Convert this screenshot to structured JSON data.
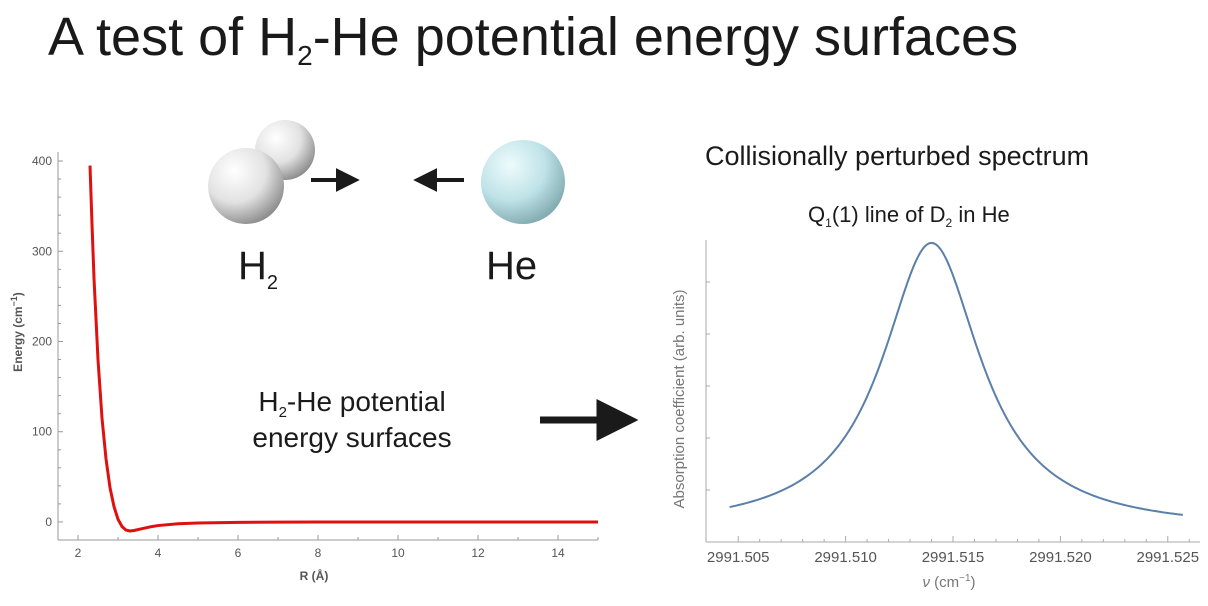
{
  "slide": {
    "title_pre": "A test of H",
    "title_sub": "2",
    "title_post": "-He potential energy surfaces"
  },
  "molecules": {
    "h2_label": "H",
    "h2_sub": "2",
    "he_label": "He",
    "h2_color": "#e6e6e6",
    "he_color": "#bfe6ea"
  },
  "pes_text": {
    "line1_pre": "H",
    "line1_sub": "2",
    "line1_post": "-He potential",
    "line2": "energy surfaces"
  },
  "spectrum_heading": "Collisionally perturbed spectrum",
  "line_heading": {
    "pre": "Q",
    "sub1": "1",
    "mid": "(1) line of D",
    "sub2": "2",
    "post": " in He"
  },
  "chart_data": [
    {
      "type": "line",
      "title": "",
      "xlabel": "R (Å)",
      "ylabel_main": "Energy (cm",
      "ylabel_sup": "−1",
      "ylabel_end": ")",
      "xlim": [
        1.5,
        15
      ],
      "ylim": [
        -20,
        410
      ],
      "xticks": [
        2,
        4,
        6,
        8,
        10,
        12,
        14
      ],
      "yticks": [
        0,
        100,
        200,
        300,
        400
      ],
      "color": "#e01010",
      "series": [
        {
          "x": [
            2.3,
            2.35,
            2.4,
            2.5,
            2.6,
            2.7,
            2.8,
            2.9,
            3.0,
            3.1,
            3.2,
            3.3,
            3.4,
            3.6,
            3.8,
            4.0,
            4.5,
            5.0,
            6.0,
            7.0,
            8.0,
            10.0,
            12.0,
            15.0
          ],
          "y": [
            395,
            330,
            270,
            180,
            115,
            70,
            38,
            17,
            3,
            -5,
            -9,
            -10,
            -9.5,
            -7.5,
            -5.5,
            -4,
            -2,
            -1.2,
            -0.5,
            -0.2,
            -0.1,
            0,
            0,
            0
          ]
        }
      ]
    },
    {
      "type": "line",
      "title": "",
      "xlabel_var": "ν",
      "xlabel_unit": " (cm",
      "xlabel_sup": "−1",
      "xlabel_end": ")",
      "ylabel": "Absorption coefficient (arb. units)",
      "xlim": [
        2991.5035,
        2991.5265
      ],
      "ylim": [
        0,
        1.05
      ],
      "xticks": [
        "2991.505",
        "2991.510",
        "2991.515",
        "2991.520",
        "2991.525"
      ],
      "color": "#5a7fa8",
      "line_center": 2991.514,
      "half_width": 0.0028
    }
  ]
}
